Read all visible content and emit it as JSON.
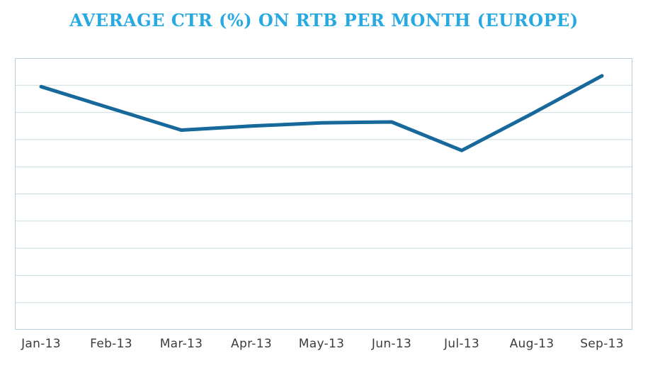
{
  "title": {
    "text": "AVERAGE CTR (%) ON RTB PER MONTH (EUROPE)",
    "color": "#29A9E1"
  },
  "chart_data": {
    "type": "line",
    "title": "AVERAGE CTR (%) ON RTB PER MONTH (EUROPE)",
    "categories": [
      "Jan-13",
      "Feb-13",
      "Mar-13",
      "Apr-13",
      "May-13",
      "Jun-13",
      "Jul-13",
      "Aug-13",
      "Sep-13"
    ],
    "series": [
      {
        "name": "Average CTR (%)",
        "values": [
          8.95,
          8.15,
          7.35,
          7.5,
          7.62,
          7.65,
          6.6,
          7.95,
          9.35
        ]
      }
    ],
    "xlabel": "",
    "ylabel": "",
    "ylim": [
      0,
      10
    ],
    "y_gridline_count": 10,
    "y_tick_labels_visible": false,
    "grid": "horizontal",
    "legend_position": "none",
    "line_color": "#17689B",
    "line_width": 5,
    "grid_color": "#C9DBE1",
    "border_color": "#B9CFD9",
    "label_color": "#3C3C3C",
    "background_color": "#FFFFFF"
  }
}
